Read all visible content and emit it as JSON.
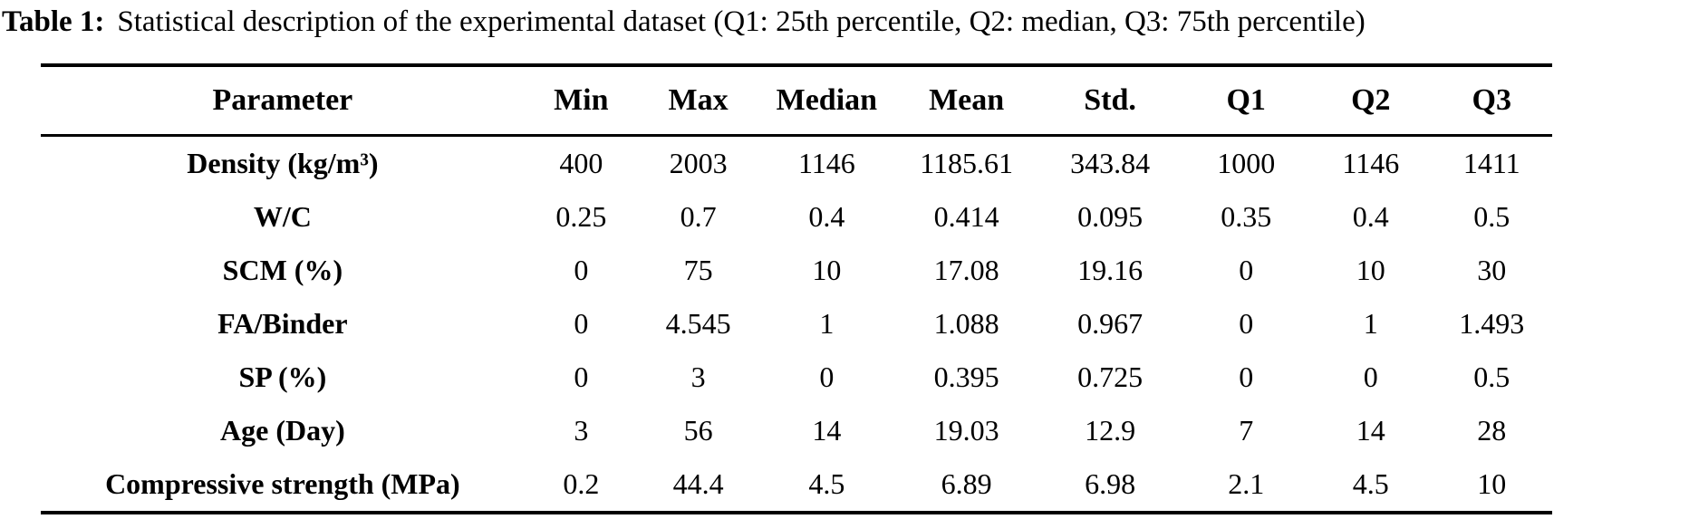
{
  "caption": {
    "label": "Table 1:",
    "text": "Statistical description of the experimental dataset (Q1: 25th percentile, Q2: median, Q3: 75th percentile)"
  },
  "table": {
    "columns": [
      "Parameter",
      "Min",
      "Max",
      "Median",
      "Mean",
      "Std.",
      "Q1",
      "Q2",
      "Q3"
    ],
    "rows": [
      {
        "parameter": "Density (kg/m³)",
        "values": [
          "400",
          "2003",
          "1146",
          "1185.61",
          "343.84",
          "1000",
          "1146",
          "1411"
        ]
      },
      {
        "parameter": "W/C",
        "values": [
          "0.25",
          "0.7",
          "0.4",
          "0.414",
          "0.095",
          "0.35",
          "0.4",
          "0.5"
        ]
      },
      {
        "parameter": "SCM (%)",
        "values": [
          "0",
          "75",
          "10",
          "17.08",
          "19.16",
          "0",
          "10",
          "30"
        ]
      },
      {
        "parameter": "FA/Binder",
        "values": [
          "0",
          "4.545",
          "1",
          "1.088",
          "0.967",
          "0",
          "1",
          "1.493"
        ]
      },
      {
        "parameter": "SP (%)",
        "values": [
          "0",
          "3",
          "0",
          "0.395",
          "0.725",
          "0",
          "0",
          "0.5"
        ]
      },
      {
        "parameter": "Age (Day)",
        "values": [
          "3",
          "56",
          "14",
          "19.03",
          "12.9",
          "7",
          "14",
          "28"
        ]
      },
      {
        "parameter": "Compressive strength (MPa)",
        "values": [
          "0.2",
          "44.4",
          "4.5",
          "6.89",
          "6.98",
          "2.1",
          "4.5",
          "10"
        ]
      }
    ],
    "column_widths_pct": [
      32,
      7.5,
      8,
      9,
      9.5,
      9.5,
      8.5,
      8,
      8
    ]
  },
  "colors": {
    "background": "#ffffff",
    "text": "#000000",
    "rule": "#000000"
  }
}
